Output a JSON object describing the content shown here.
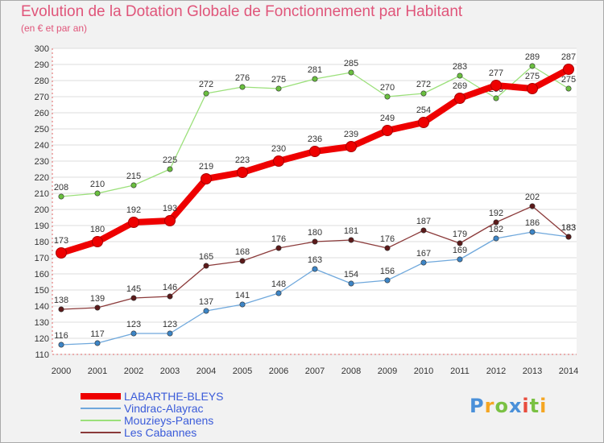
{
  "header": {
    "title": "Evolution de la Dotation Globale de Fonctionnement par Habitant",
    "subtitle": "(en € et par an)"
  },
  "logo": {
    "text": "Proxiti",
    "colors": [
      "#4a90d9",
      "#f5a623",
      "#7ac143",
      "#4a90d9",
      "#e84c3d",
      "#7ac143",
      "#f5a623"
    ]
  },
  "chart_data": {
    "type": "line",
    "title": "Evolution de la Dotation Globale de Fonctionnement par Habitant",
    "subtitle": "(en € et par an)",
    "xlabel": "",
    "ylabel": "",
    "ylim": [
      110,
      300
    ],
    "yticks": [
      110,
      120,
      130,
      140,
      150,
      160,
      170,
      180,
      190,
      200,
      210,
      220,
      230,
      240,
      250,
      260,
      270,
      280,
      290,
      300
    ],
    "categories": [
      "2000",
      "2001",
      "2002",
      "2003",
      "2004",
      "2005",
      "2006",
      "2007",
      "2008",
      "2009",
      "2010",
      "2011",
      "2012",
      "2013",
      "2014"
    ],
    "grid": true,
    "legend_position": "bottom-left",
    "series": [
      {
        "name": "LABARTHE-BLEYS",
        "color": "#ee0000",
        "marker": "#ee0000",
        "values": [
          173,
          180,
          192,
          193,
          219,
          223,
          230,
          236,
          239,
          249,
          254,
          269,
          277,
          275,
          287
        ]
      },
      {
        "name": "Vindrac-Alayrac",
        "color": "#6fa8dc",
        "marker": "#3d85c6",
        "values": [
          116,
          117,
          123,
          123,
          137,
          141,
          148,
          163,
          154,
          156,
          167,
          169,
          182,
          186,
          183
        ]
      },
      {
        "name": "Mouzieys-Panens",
        "color": "#9be07a",
        "marker": "#6abf3f",
        "values": [
          208,
          210,
          215,
          225,
          272,
          276,
          275,
          281,
          285,
          270,
          272,
          283,
          269,
          289,
          275
        ]
      },
      {
        "name": "Les Cabannes",
        "color": "#8b3a3a",
        "marker": "#5c1a1a",
        "values": [
          138,
          139,
          145,
          146,
          165,
          168,
          176,
          180,
          181,
          176,
          187,
          179,
          192,
          202,
          183
        ]
      }
    ]
  }
}
